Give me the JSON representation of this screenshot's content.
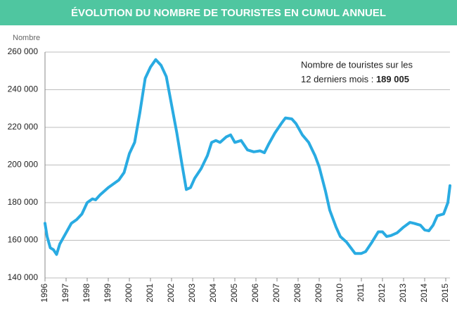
{
  "chart_data": {
    "type": "line",
    "title": "ÉVOLUTION DU NOMBRE DE TOURISTES EN CUMUL ANNUEL",
    "y_label": "Nombre",
    "annotation": {
      "line1": "Nombre de touristes sur les",
      "line2": "12 derniers mois : ",
      "value": "189 005"
    },
    "xlim": [
      1996,
      2015.3
    ],
    "xticks": [
      1996,
      1997,
      1998,
      1999,
      2000,
      2001,
      2002,
      2003,
      2004,
      2005,
      2006,
      2007,
      2008,
      2009,
      2010,
      2011,
      2012,
      2013,
      2014,
      2015
    ],
    "ylim": [
      140000,
      260000
    ],
    "yticks": [
      {
        "value": 140000,
        "label": "140 000"
      },
      {
        "value": 160000,
        "label": "160 000"
      },
      {
        "value": 180000,
        "label": "180 000"
      },
      {
        "value": 200000,
        "label": "200 000"
      },
      {
        "value": 220000,
        "label": "220 000"
      },
      {
        "value": 240000,
        "label": "240 000"
      },
      {
        "value": 260000,
        "label": "260 000"
      }
    ],
    "grid": true,
    "x": [
      1996.0,
      1996.1,
      1996.25,
      1996.4,
      1996.55,
      1996.7,
      1997.0,
      1997.25,
      1997.5,
      1997.75,
      1998.0,
      1998.25,
      1998.4,
      1998.6,
      1999.0,
      1999.25,
      1999.5,
      1999.75,
      2000.0,
      2000.25,
      2000.5,
      2000.75,
      2001.0,
      2001.25,
      2001.5,
      2001.75,
      2002.0,
      2002.25,
      2002.5,
      2002.7,
      2002.9,
      2003.1,
      2003.4,
      2003.7,
      2003.9,
      2004.1,
      2004.3,
      2004.6,
      2004.8,
      2005.0,
      2005.3,
      2005.6,
      2005.9,
      2006.2,
      2006.4,
      2006.6,
      2006.9,
      2007.2,
      2007.4,
      2007.7,
      2007.9,
      2008.2,
      2008.5,
      2008.8,
      2009.0,
      2009.3,
      2009.5,
      2009.8,
      2010.0,
      2010.3,
      2010.5,
      2010.7,
      2011.0,
      2011.2,
      2011.5,
      2011.8,
      2012.0,
      2012.2,
      2012.4,
      2012.7,
      2013.0,
      2013.3,
      2013.5,
      2013.8,
      2014.0,
      2014.2,
      2014.4,
      2014.6,
      2014.9,
      2015.1,
      2015.2
    ],
    "series": [
      {
        "color": "#29abe2",
        "values": [
          169000,
          162000,
          156000,
          155000,
          152500,
          158000,
          164000,
          169000,
          171000,
          174000,
          180000,
          182000,
          181500,
          184000,
          188000,
          190000,
          192000,
          196000,
          206000,
          212000,
          228000,
          246000,
          252000,
          256000,
          253000,
          247000,
          232000,
          217000,
          200000,
          187000,
          188000,
          193000,
          198000,
          205000,
          212000,
          213000,
          212000,
          215000,
          216000,
          212000,
          213000,
          208000,
          207000,
          207500,
          206500,
          211000,
          217000,
          222000,
          225000,
          224500,
          222000,
          216000,
          212000,
          205000,
          199000,
          186000,
          176000,
          167000,
          162000,
          159000,
          156000,
          153000,
          153000,
          154000,
          159000,
          164500,
          164500,
          162000,
          162500,
          164000,
          167000,
          169500,
          169000,
          168000,
          165500,
          165000,
          168000,
          173000,
          174000,
          180000,
          189000
        ]
      }
    ]
  }
}
